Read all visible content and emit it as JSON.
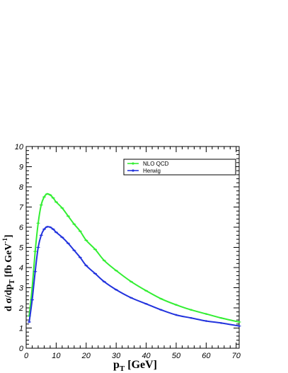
{
  "chart_data": {
    "type": "line",
    "xlabel": "p",
    "xlabel_sub": "T",
    "xlabel_unit": " [GeV]",
    "ylabel_parts": [
      "d σ/dp",
      "T",
      "  [fb GeV",
      "-1",
      "]"
    ],
    "xlim": [
      0,
      71
    ],
    "ylim": [
      0,
      10
    ],
    "x_ticks": [
      0,
      10,
      20,
      30,
      40,
      50,
      60,
      70
    ],
    "y_ticks": [
      0,
      1,
      2,
      3,
      4,
      5,
      6,
      7,
      8,
      9,
      10
    ],
    "legend_position": "top-right",
    "series": [
      {
        "name": "NLO QCD",
        "color": "#33ee33",
        "x": [
          1,
          2,
          3,
          4,
          5,
          6,
          7,
          8,
          9,
          10,
          12,
          14,
          16,
          18,
          20,
          23,
          26,
          30,
          35,
          40,
          45,
          50,
          55,
          60,
          65,
          71
        ],
        "y": [
          1.6,
          3.0,
          4.8,
          6.2,
          7.1,
          7.5,
          7.65,
          7.6,
          7.45,
          7.25,
          6.95,
          6.55,
          6.15,
          5.8,
          5.35,
          4.9,
          4.35,
          3.85,
          3.3,
          2.85,
          2.45,
          2.15,
          1.9,
          1.7,
          1.5,
          1.3
        ]
      },
      {
        "name": "Herwig",
        "color": "#2233dd",
        "x": [
          1,
          2,
          3,
          4,
          5,
          6,
          7,
          8,
          9,
          10,
          12,
          14,
          16,
          18,
          20,
          23,
          26,
          30,
          35,
          40,
          45,
          50,
          55,
          60,
          65,
          71
        ],
        "y": [
          1.3,
          2.4,
          3.8,
          5.0,
          5.6,
          5.9,
          6.02,
          6.0,
          5.9,
          5.75,
          5.5,
          5.2,
          4.85,
          4.5,
          4.1,
          3.7,
          3.3,
          2.9,
          2.5,
          2.2,
          1.9,
          1.65,
          1.5,
          1.35,
          1.25,
          1.1
        ]
      }
    ]
  }
}
